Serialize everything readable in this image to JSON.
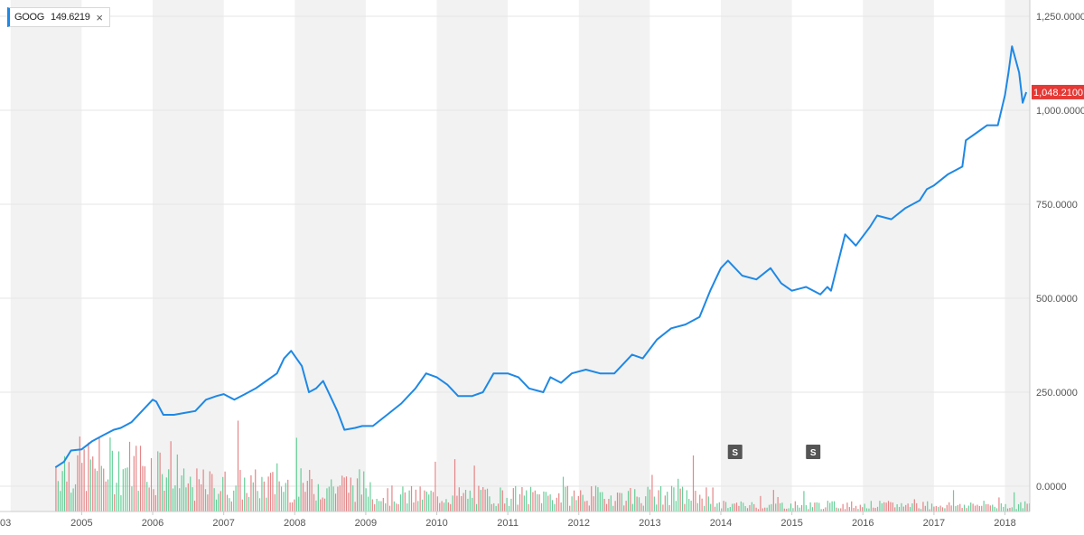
{
  "legend": {
    "symbol": "GOOG",
    "value": "149.6219",
    "close_glyph": "×",
    "line_color": "#1e88e5"
  },
  "colors": {
    "line": "#1e88e5",
    "volume_up": "#56c98e",
    "volume_down": "#e2787a",
    "band": "#f2f2f2",
    "last_price": "#e53935",
    "split_marker": "#555555"
  },
  "chart_data": {
    "type": "line",
    "title": "",
    "series": [
      {
        "name": "GOOG",
        "x": [
          2004.63,
          2004.75,
          2004.85,
          2005.0,
          2005.15,
          2005.3,
          2005.45,
          2005.55,
          2005.7,
          2005.85,
          2006.0,
          2006.05,
          2006.15,
          2006.3,
          2006.45,
          2006.6,
          2006.75,
          2006.9,
          2007.0,
          2007.15,
          2007.3,
          2007.45,
          2007.6,
          2007.75,
          2007.85,
          2007.95,
          2008.1,
          2008.2,
          2008.3,
          2008.4,
          2008.5,
          2008.6,
          2008.7,
          2008.85,
          2008.95,
          2009.1,
          2009.3,
          2009.5,
          2009.7,
          2009.85,
          2010.0,
          2010.15,
          2010.3,
          2010.5,
          2010.65,
          2010.8,
          2011.0,
          2011.15,
          2011.3,
          2011.5,
          2011.6,
          2011.75,
          2011.9,
          2012.1,
          2012.3,
          2012.5,
          2012.6,
          2012.75,
          2012.9,
          2013.1,
          2013.3,
          2013.5,
          2013.7,
          2013.85,
          2014.0,
          2014.1,
          2014.3,
          2014.5,
          2014.7,
          2014.85,
          2015.0,
          2015.2,
          2015.4,
          2015.5,
          2015.55,
          2015.75,
          2015.9,
          2016.1,
          2016.2,
          2016.4,
          2016.6,
          2016.8,
          2016.9,
          2017.0,
          2017.2,
          2017.4,
          2017.45,
          2017.6,
          2017.75,
          2017.9,
          2018.0,
          2018.05,
          2018.1,
          2018.2,
          2018.25,
          2018.3
        ],
        "y": [
          50,
          65,
          95,
          98,
          120,
          135,
          150,
          155,
          170,
          200,
          230,
          225,
          190,
          190,
          195,
          200,
          230,
          240,
          245,
          230,
          245,
          260,
          280,
          300,
          340,
          360,
          320,
          250,
          260,
          280,
          240,
          200,
          150,
          155,
          160,
          160,
          190,
          220,
          260,
          300,
          290,
          270,
          240,
          240,
          250,
          300,
          300,
          290,
          260,
          250,
          290,
          275,
          300,
          310,
          300,
          300,
          320,
          350,
          340,
          390,
          420,
          430,
          450,
          520,
          580,
          600,
          560,
          550,
          580,
          540,
          520,
          530,
          510,
          530,
          520,
          670,
          640,
          690,
          720,
          710,
          740,
          760,
          790,
          800,
          830,
          850,
          920,
          940,
          960,
          960,
          1040,
          1100,
          1170,
          1100,
          1020,
          1048
        ]
      }
    ],
    "xlabel": "",
    "ylabel": "",
    "x_tick_labels": [
      "2005",
      "2006",
      "2007",
      "2008",
      "2009",
      "2010",
      "2011",
      "2012",
      "2013",
      "2014",
      "2015",
      "2016",
      "2017",
      "2018"
    ],
    "x_edge_label": "03",
    "y_ticks": [
      0,
      250,
      500,
      750,
      1000,
      1250
    ],
    "y_tick_labels": [
      "0.0000",
      "250.0000",
      "500.0000",
      "750.0000",
      "1,000.0000",
      "1,250.0000"
    ],
    "ylim": [
      0,
      1250
    ],
    "xlim": [
      2003.85,
      2018.35
    ],
    "last_price": 1048.21,
    "last_price_label": "1,048.2100",
    "split_markers": [
      {
        "x": 2014.2,
        "label": "S"
      },
      {
        "x": 2015.3,
        "label": "S"
      }
    ],
    "volume_overlay": true,
    "grid": true,
    "legend_position": "top-left"
  }
}
